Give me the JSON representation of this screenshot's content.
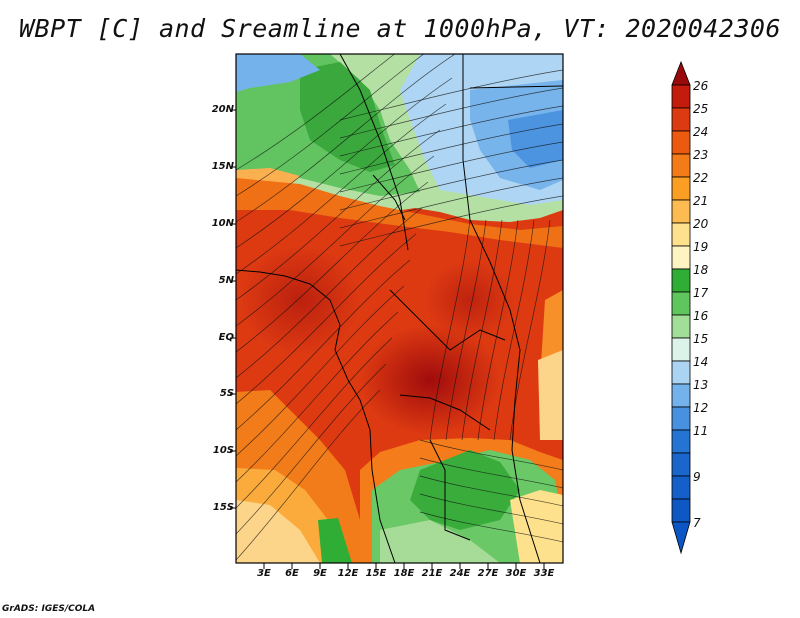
{
  "title": "WBPT [C] and Sreamline at 1000hPa, VT: 2020042306",
  "y_ticks": [
    "20N",
    "15N",
    "10N",
    "5N",
    "EQ",
    "5S",
    "10S",
    "15S"
  ],
  "x_ticks": [
    "3E",
    "6E",
    "9E",
    "12E",
    "15E",
    "18E",
    "21E",
    "24E",
    "27E",
    "30E",
    "33E"
  ],
  "colorbar": {
    "labels": [
      "26",
      "25",
      "24",
      "23",
      "22",
      "21",
      "20",
      "19",
      "18",
      "17",
      "16",
      "15",
      "14",
      "13",
      "12",
      "11",
      "9",
      "7"
    ],
    "colors": [
      "#9b0a0a",
      "#c41c0c",
      "#dc3a10",
      "#ec5a10",
      "#f47c18",
      "#fa9e24",
      "#fcbc52",
      "#fde18c",
      "#fdf4c2",
      "#30ad35",
      "#5fc65e",
      "#a1de97",
      "#dcf3e9",
      "#abd4f3",
      "#74b2ec",
      "#4891e0",
      "#2474d3",
      "#0c55c4"
    ]
  },
  "footer": "GrADS: IGES/COLA"
}
